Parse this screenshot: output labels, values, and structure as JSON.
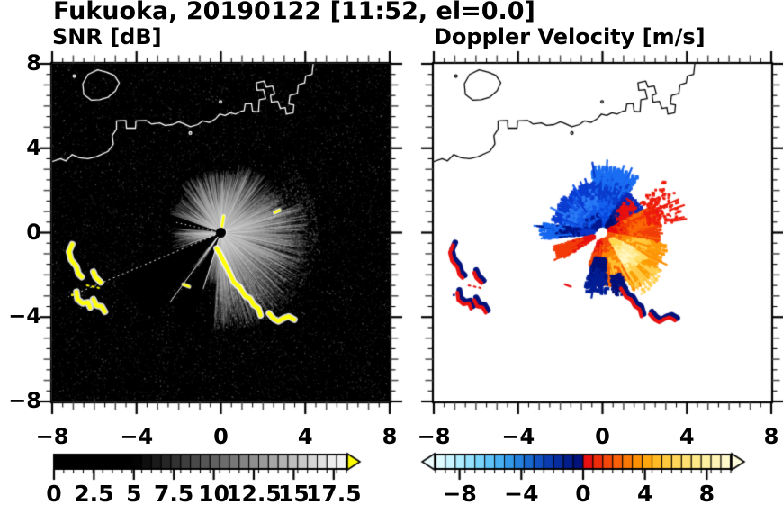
{
  "header": {
    "title": "Fukuoka, 20190122 [11:52, el=0.0]"
  },
  "panels": {
    "snr": {
      "title": "SNR [dB]"
    },
    "velocity": {
      "title": "Doppler Velocity [m/s]"
    }
  },
  "axes": {
    "xlim": [
      -8,
      8
    ],
    "ylim": [
      -8,
      8
    ],
    "xtick_values": [
      -8,
      -4,
      0,
      4,
      8
    ],
    "ytick_values": [
      8,
      4,
      0,
      -4,
      -8
    ],
    "xtick_labels": [
      "−8",
      "−4",
      "0",
      "4",
      "8"
    ],
    "ytick_labels": [
      "8",
      "4",
      "0",
      "−4",
      "−8"
    ],
    "minor_step": 0.5
  },
  "colorbars": {
    "snr": {
      "tick_labels": [
        "0",
        "2.5",
        "5",
        "7.5",
        "10",
        "12.5",
        "15",
        "17.5"
      ],
      "tick_values": [
        0,
        2.5,
        5,
        7.5,
        10,
        12.5,
        15,
        17.5
      ],
      "range": [
        0,
        18.3
      ],
      "ncells": 30,
      "black_until": 5,
      "arrow_color": "#ffff00",
      "style": "grayscale black to white, yellow overflow arrow"
    },
    "velocity": {
      "tick_labels": [
        "−8",
        "−4",
        "0",
        "4",
        "8"
      ],
      "tick_values": [
        -8,
        -4,
        0,
        4,
        8
      ],
      "range": [
        -9.55,
        9.55
      ],
      "cells": [
        "#dffaff",
        "#c9f4ff",
        "#b0ecff",
        "#95e2ff",
        "#79d4fc",
        "#5fc3f8",
        "#48aff2",
        "#3498e8",
        "#2480dc",
        "#1968ce",
        "#1050c0",
        "#0a3cb0",
        "#062c9e",
        "#031e8c",
        "#00127c",
        "#e81010",
        "#ee2c0c",
        "#f4470a",
        "#f96008",
        "#fc7806",
        "#fe9004",
        "#ffa70e",
        "#ffba24",
        "#ffc93e",
        "#ffd658",
        "#ffe070",
        "#ffe888",
        "#ffefa0",
        "#fff4b6",
        "#fff8ca"
      ],
      "arrow_left": "#ecfcff",
      "arrow_right": "#fffbda"
    }
  },
  "chart_data": [
    {
      "type": "heatmap",
      "id": "snr",
      "title": "SNR [dB]",
      "xlim": [
        -8,
        8
      ],
      "ylim": [
        -8,
        8
      ],
      "units": "dB",
      "background": "#000000",
      "coast_color": "#ffffff",
      "radar_center": [
        0,
        0
      ],
      "fan_sectors": [
        {
          "a0": -95,
          "a1": -45,
          "r": 4.6,
          "w": 1.0
        },
        {
          "a0": -45,
          "a1": 20,
          "r": 4.2,
          "w": 1.0
        },
        {
          "a0": 20,
          "a1": 75,
          "r": 3.4,
          "w": 0.9
        },
        {
          "a0": 75,
          "a1": 130,
          "r": 3.0,
          "w": 0.85
        },
        {
          "a0": 130,
          "a1": 160,
          "r": 2.6,
          "w": 0.5
        },
        {
          "a0": 174,
          "a1": 200,
          "r": 2.4,
          "w": 0.35
        },
        {
          "a0": 252,
          "a1": 268,
          "r": 2.6,
          "w": 0.45
        },
        {
          "a0": 230,
          "a1": 238,
          "r": 2.2,
          "w": 0.3
        }
      ],
      "haze_sector": {
        "a0": -95,
        "a1": 40,
        "r0": 0.4,
        "r1": 4.6,
        "n": 2600
      },
      "black_wedges": [
        [
          203.5,
          229,
          5.2
        ],
        [
          239,
          251.5,
          4.6
        ],
        [
          160,
          171,
          2.9
        ]
      ],
      "bright_rays": [
        {
          "a": 202.8,
          "r0": 0.3,
          "r1": 7.85,
          "dash": [
            2,
            3.5
          ]
        },
        {
          "a": 233.8,
          "r0": 0.2,
          "r1": 4.1,
          "dash": null
        },
        {
          "a": 252.5,
          "r0": 0.3,
          "r1": 2.8,
          "dash": null
        },
        {
          "a": 167.2,
          "r0": 0.4,
          "r1": 2.3,
          "dash": [
            1.5,
            3.5
          ]
        }
      ],
      "high_snr_color": "#ffff00"
    },
    {
      "type": "heatmap",
      "id": "velocity",
      "title": "Doppler Velocity [m/s]",
      "xlim": [
        -8,
        8
      ],
      "ylim": [
        -8,
        8
      ],
      "units": "m/s",
      "background": "#ffffff",
      "coast_color": "#000000",
      "radar_center": [
        0,
        0
      ],
      "sectors": [
        {
          "a0": 57,
          "a1": 100,
          "r0": 0.3,
          "r1": 2.9,
          "n": 2400,
          "stops": [
            "#0a47dd",
            "#1560ee",
            "#0b3ccc",
            "#1b6ef2"
          ],
          "spikes": 14
        },
        {
          "a0": 100,
          "a1": 168,
          "r0": 0.3,
          "r1": 2.3,
          "n": 1900,
          "stops": [
            "#001a92",
            "#1257e8",
            "#2a7af5",
            "#0a3cd0"
          ],
          "spikes": 10
        },
        {
          "a0": 26,
          "a1": 60,
          "r0": 0.3,
          "r1": 2.05,
          "n": 1300,
          "stops": [
            "#000e70",
            "#031c90",
            "#0a2ab8"
          ],
          "spikes": 6
        },
        {
          "a0": 30,
          "a1": 55,
          "r0": 0.9,
          "r1": 1.9,
          "n": 90,
          "stops": [
            "#e81010"
          ],
          "spikes": 0
        },
        {
          "a0": 171,
          "a1": 186,
          "r0": 0.4,
          "r1": 2.75,
          "n": 800,
          "stops": [
            "#0a35c8",
            "#001485",
            "#1668f0"
          ],
          "spikes": 4
        },
        {
          "a0": 196,
          "a1": 213,
          "r0": 0.4,
          "r1": 2.25,
          "n": 550,
          "stops": [
            "#e81010",
            "#f23c0a"
          ],
          "spikes": 5
        },
        {
          "a0": -12,
          "a1": 28,
          "r0": 0.28,
          "r1": 2.6,
          "n": 1700,
          "stops": [
            "#e80c0c",
            "#f23c08",
            "#fa6a06",
            "#f34008"
          ],
          "spikes": 12
        },
        {
          "a0": -62,
          "a1": -10,
          "r0": 0.28,
          "r1": 2.9,
          "n": 2400,
          "stops": [
            "#f4560a",
            "#fc9006",
            "#ffc83c",
            "#fe9a08"
          ],
          "spikes": 14
        },
        {
          "a0": -58,
          "a1": -28,
          "r0": 0.5,
          "r1": 2.25,
          "n": 1500,
          "stops": [
            "#ffd84e",
            "#ffeb96",
            "#fff6c0",
            "#ffde66"
          ],
          "spikes": 6
        },
        {
          "a0": -100,
          "a1": -60,
          "r0": 0.3,
          "r1": 2.35,
          "n": 1700,
          "stops": [
            "#f4480a",
            "#fc8806",
            "#ffc030",
            "#f86206"
          ],
          "spikes": 10
        },
        {
          "a0": -113,
          "a1": -96,
          "r0": 0.4,
          "r1": 1.6,
          "n": 450,
          "stops": [
            "#e81212",
            "#f44808"
          ],
          "spikes": 3
        },
        {
          "a0": -108,
          "a1": -84,
          "r0": 1.15,
          "r1": 2.7,
          "n": 420,
          "stops": [
            "#001078",
            "#001e96"
          ],
          "spikes": 4
        },
        {
          "a0": -80,
          "a1": -66,
          "r0": 2.1,
          "r1": 2.95,
          "n": 160,
          "stops": [
            "#001078"
          ],
          "spikes": 2
        },
        {
          "a0": 8,
          "a1": 40,
          "r0": 2.2,
          "r1": 3.6,
          "n": 130,
          "stops": [
            "#ee1c0c"
          ],
          "spikes": 6
        },
        {
          "a0": -58,
          "a1": -34,
          "r0": 2.3,
          "r1": 3.3,
          "n": 180,
          "stops": [
            "#fca006",
            "#ffd050"
          ],
          "spikes": 6
        }
      ],
      "dotted_ray": {
        "a": 167.2,
        "r0": 0.5,
        "r1": 2.2,
        "color": "#0a3cd0"
      },
      "ship_colors": {
        "edge": "#00127c",
        "body": "#e81010"
      }
    }
  ],
  "geo": {
    "coast_main": [
      [
        -8.05,
        3.35
      ],
      [
        -7.6,
        3.5
      ],
      [
        -7.35,
        3.4
      ],
      [
        -7.05,
        3.7
      ],
      [
        -6.7,
        3.55
      ],
      [
        -6.3,
        3.5
      ],
      [
        -5.9,
        3.6
      ],
      [
        -5.35,
        3.85
      ],
      [
        -5.1,
        4.2
      ],
      [
        -5.15,
        4.6
      ],
      [
        -4.95,
        4.9
      ],
      [
        -4.95,
        5.3
      ],
      [
        -4.5,
        5.32
      ],
      [
        -4.48,
        4.95
      ],
      [
        -4.05,
        4.95
      ],
      [
        -4.03,
        5.3
      ],
      [
        -3.55,
        5.32
      ],
      [
        -3.3,
        5.15
      ],
      [
        -2.9,
        5.2
      ],
      [
        -2.65,
        5.08
      ],
      [
        -2.3,
        5.12
      ],
      [
        -2.0,
        5.25
      ],
      [
        -1.8,
        5.18
      ],
      [
        -1.45,
        5.02
      ],
      [
        -1.1,
        5.12
      ],
      [
        -0.85,
        5.3
      ],
      [
        -0.55,
        5.22
      ],
      [
        -0.25,
        5.4
      ],
      [
        -0.05,
        5.62
      ],
      [
        0.2,
        5.55
      ],
      [
        0.45,
        5.68
      ],
      [
        0.7,
        5.62
      ],
      [
        0.95,
        5.75
      ],
      [
        1.1,
        5.78
      ],
      [
        1.15,
        6.1
      ],
      [
        1.45,
        6.12
      ],
      [
        1.5,
        5.75
      ],
      [
        1.78,
        5.72
      ],
      [
        1.82,
        6.3
      ],
      [
        2.12,
        6.35
      ],
      [
        2.02,
        6.78
      ],
      [
        1.72,
        6.75
      ],
      [
        1.68,
        7.1
      ],
      [
        2.05,
        7.18
      ],
      [
        2.15,
        6.9
      ],
      [
        2.45,
        6.95
      ],
      [
        2.55,
        6.58
      ],
      [
        2.35,
        6.5
      ],
      [
        2.4,
        6.18
      ],
      [
        2.7,
        6.22
      ],
      [
        2.82,
        5.88
      ],
      [
        3.05,
        5.93
      ],
      [
        3.1,
        5.62
      ],
      [
        3.42,
        5.68
      ],
      [
        3.46,
        6.05
      ],
      [
        3.22,
        6.1
      ],
      [
        3.27,
        6.5
      ],
      [
        3.62,
        6.6
      ],
      [
        3.67,
        7.0
      ],
      [
        3.97,
        7.1
      ],
      [
        4.02,
        7.42
      ],
      [
        4.32,
        7.5
      ],
      [
        4.38,
        8.05
      ]
    ],
    "island": [
      [
        -6.55,
        7.05
      ],
      [
        -6.3,
        7.5
      ],
      [
        -5.85,
        7.72
      ],
      [
        -5.4,
        7.6
      ],
      [
        -5.05,
        7.45
      ],
      [
        -4.82,
        7.1
      ],
      [
        -5.0,
        6.72
      ],
      [
        -5.35,
        6.42
      ],
      [
        -5.75,
        6.3
      ],
      [
        -6.15,
        6.28
      ],
      [
        -6.5,
        6.55
      ]
    ],
    "islet_dots": [
      [
        -6.95,
        7.42
      ],
      [
        -0.02,
        6.2
      ],
      [
        -1.45,
        4.72
      ]
    ]
  },
  "features": {
    "ships_left": [
      [
        [
          -7.05,
          -0.55
        ],
        [
          -7.2,
          -0.9
        ],
        [
          -7.1,
          -1.3
        ],
        [
          -6.85,
          -1.6
        ],
        [
          -6.75,
          -1.95
        ],
        [
          -6.6,
          -2.1
        ]
      ],
      [
        [
          -6.05,
          -1.85
        ],
        [
          -5.95,
          -2.1
        ],
        [
          -5.7,
          -2.35
        ]
      ],
      [
        [
          -6.85,
          -2.8
        ],
        [
          -6.8,
          -3.15
        ],
        [
          -6.55,
          -3.35
        ],
        [
          -6.3,
          -3.3
        ],
        [
          -6.2,
          -3.55
        ]
      ],
      [
        [
          -6.05,
          -3.15
        ],
        [
          -5.9,
          -3.45
        ],
        [
          -5.65,
          -3.5
        ],
        [
          -5.5,
          -3.75
        ]
      ]
    ],
    "arc_near": [
      [
        -0.2,
        -0.75
      ],
      [
        -0.05,
        -1.0
      ],
      [
        0.1,
        -1.3
      ],
      [
        0.28,
        -1.65
      ],
      [
        0.45,
        -2.0
      ],
      [
        0.62,
        -2.35
      ],
      [
        0.9,
        -2.6
      ]
    ],
    "arc_far": [
      [
        0.9,
        -2.6
      ],
      [
        1.15,
        -3.0
      ],
      [
        1.38,
        -3.12
      ],
      [
        1.55,
        -3.42
      ],
      [
        1.78,
        -3.58
      ],
      [
        1.88,
        -3.92
      ]
    ],
    "arc_east": [
      [
        2.28,
        -3.82
      ],
      [
        2.5,
        -4.08
      ],
      [
        2.72,
        -4.2
      ],
      [
        2.98,
        -4.05
      ],
      [
        3.22,
        -3.97
      ],
      [
        3.48,
        -4.12
      ]
    ],
    "small_dashes": [
      [
        [
          2.55,
          0.95
        ],
        [
          2.78,
          1.06
        ]
      ],
      [
        [
          -1.78,
          -2.45
        ],
        [
          -1.5,
          -2.56
        ]
      ],
      [
        [
          0.05,
          0.3
        ],
        [
          0.13,
          0.78
        ]
      ]
    ],
    "ship_track_dots": [
      [
        -6.35,
        -2.5
      ],
      [
        -5.78,
        -2.62
      ]
    ],
    "lone_dot": [
      -7.1,
      -2.9
    ]
  }
}
